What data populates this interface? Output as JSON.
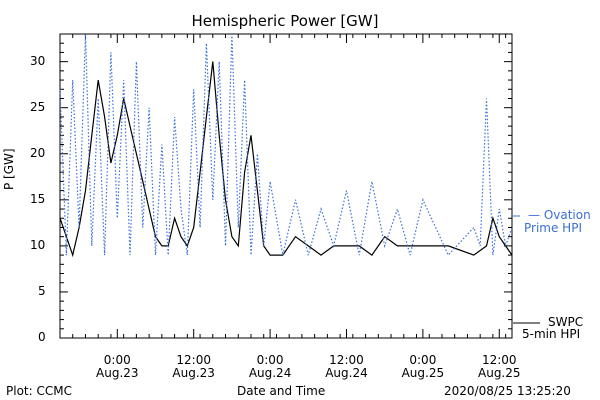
{
  "footer": {
    "left": "Plot: CCMC",
    "center": "Date and Time",
    "right": "2020/08/25 13:25:20"
  },
  "legend": {
    "ovation_line1": "— Ovation",
    "ovation_line2": "Prime HPI",
    "swpc_line1": "SWPC",
    "swpc_line2": "5-min HPI"
  },
  "colors": {
    "ovation": "#3a6fd8",
    "swpc": "#000000",
    "axes": "#000000"
  },
  "chart_data": {
    "type": "line",
    "title": "Hemispheric Power [GW]",
    "xlabel": "Date and Time",
    "ylabel": "P [GW]",
    "ylim": [
      0,
      33
    ],
    "xlim": [
      "2020-08-22 15:00",
      "2020-08-25 14:00"
    ],
    "yticks": [
      0,
      5,
      10,
      15,
      20,
      25,
      30
    ],
    "xticks": [
      {
        "x": "2020-08-23 00:00",
        "line1": "0:00",
        "line2": "Aug.23"
      },
      {
        "x": "2020-08-23 12:00",
        "line1": "12:00",
        "line2": "Aug.23"
      },
      {
        "x": "2020-08-24 00:00",
        "line1": "0:00",
        "line2": "Aug.24"
      },
      {
        "x": "2020-08-24 12:00",
        "line1": "12:00",
        "line2": "Aug.24"
      },
      {
        "x": "2020-08-25 00:00",
        "line1": "0:00",
        "line2": "Aug.25"
      },
      {
        "x": "2020-08-25 12:00",
        "line1": "12:00",
        "line2": "Aug.25"
      }
    ],
    "grid": false,
    "legend_placement": "right",
    "series": [
      {
        "name": "SWPC 5-min HPI",
        "style": "solid",
        "x": [
          "2020-08-22 15:00",
          "2020-08-22 16:00",
          "2020-08-22 17:00",
          "2020-08-22 18:00",
          "2020-08-22 19:00",
          "2020-08-22 20:00",
          "2020-08-22 21:00",
          "2020-08-22 22:00",
          "2020-08-22 23:00",
          "2020-08-23 00:00",
          "2020-08-23 01:00",
          "2020-08-23 02:00",
          "2020-08-23 03:00",
          "2020-08-23 04:00",
          "2020-08-23 05:00",
          "2020-08-23 06:00",
          "2020-08-23 07:00",
          "2020-08-23 08:00",
          "2020-08-23 09:00",
          "2020-08-23 10:00",
          "2020-08-23 11:00",
          "2020-08-23 12:00",
          "2020-08-23 13:00",
          "2020-08-23 14:00",
          "2020-08-23 15:00",
          "2020-08-23 16:00",
          "2020-08-23 17:00",
          "2020-08-23 18:00",
          "2020-08-23 19:00",
          "2020-08-23 20:00",
          "2020-08-23 21:00",
          "2020-08-23 22:00",
          "2020-08-23 23:00",
          "2020-08-24 00:00",
          "2020-08-24 02:00",
          "2020-08-24 04:00",
          "2020-08-24 06:00",
          "2020-08-24 08:00",
          "2020-08-24 10:00",
          "2020-08-24 12:00",
          "2020-08-24 14:00",
          "2020-08-24 16:00",
          "2020-08-24 18:00",
          "2020-08-24 20:00",
          "2020-08-24 22:00",
          "2020-08-25 00:00",
          "2020-08-25 04:00",
          "2020-08-25 08:00",
          "2020-08-25 10:00",
          "2020-08-25 11:00",
          "2020-08-25 12:00",
          "2020-08-25 13:00",
          "2020-08-25 14:00"
        ],
        "y": [
          13,
          11,
          9,
          12,
          16,
          22,
          28,
          24,
          19,
          22,
          26,
          23,
          20,
          17,
          14,
          11,
          10,
          10,
          13,
          11,
          10,
          12,
          18,
          24,
          30,
          22,
          15,
          11,
          10,
          18,
          22,
          16,
          10,
          9,
          9,
          11,
          10,
          9,
          10,
          10,
          10,
          9,
          11,
          10,
          10,
          10,
          10,
          9,
          10,
          13,
          11,
          10,
          9
        ]
      },
      {
        "name": "Ovation Prime HPI",
        "style": "dotted",
        "x": [
          "2020-08-22 15:00",
          "2020-08-22 16:00",
          "2020-08-22 17:00",
          "2020-08-22 18:00",
          "2020-08-22 19:00",
          "2020-08-22 20:00",
          "2020-08-22 21:00",
          "2020-08-22 22:00",
          "2020-08-22 23:00",
          "2020-08-23 00:00",
          "2020-08-23 01:00",
          "2020-08-23 02:00",
          "2020-08-23 03:00",
          "2020-08-23 04:00",
          "2020-08-23 05:00",
          "2020-08-23 06:00",
          "2020-08-23 07:00",
          "2020-08-23 08:00",
          "2020-08-23 09:00",
          "2020-08-23 10:00",
          "2020-08-23 11:00",
          "2020-08-23 12:00",
          "2020-08-23 13:00",
          "2020-08-23 14:00",
          "2020-08-23 15:00",
          "2020-08-23 16:00",
          "2020-08-23 17:00",
          "2020-08-23 18:00",
          "2020-08-23 19:00",
          "2020-08-23 20:00",
          "2020-08-23 21:00",
          "2020-08-23 22:00",
          "2020-08-23 23:00",
          "2020-08-24 00:00",
          "2020-08-24 02:00",
          "2020-08-24 04:00",
          "2020-08-24 06:00",
          "2020-08-24 08:00",
          "2020-08-24 10:00",
          "2020-08-24 12:00",
          "2020-08-24 14:00",
          "2020-08-24 16:00",
          "2020-08-24 18:00",
          "2020-08-24 20:00",
          "2020-08-24 22:00",
          "2020-08-25 00:00",
          "2020-08-25 04:00",
          "2020-08-25 08:00",
          "2020-08-25 09:00",
          "2020-08-25 10:00",
          "2020-08-25 11:00",
          "2020-08-25 12:00",
          "2020-08-25 13:00",
          "2020-08-25 14:00"
        ],
        "y": [
          27,
          9,
          28,
          12,
          33,
          10,
          26,
          9,
          31,
          13,
          28,
          9,
          30,
          12,
          25,
          9,
          21,
          9,
          24,
          14,
          9,
          27,
          12,
          32,
          15,
          30,
          10,
          33,
          12,
          28,
          9,
          20,
          10,
          17,
          9,
          15,
          9,
          14,
          10,
          16,
          9,
          17,
          10,
          14,
          9,
          15,
          9,
          12,
          10,
          26,
          9,
          14,
          10,
          12
        ]
      }
    ]
  }
}
